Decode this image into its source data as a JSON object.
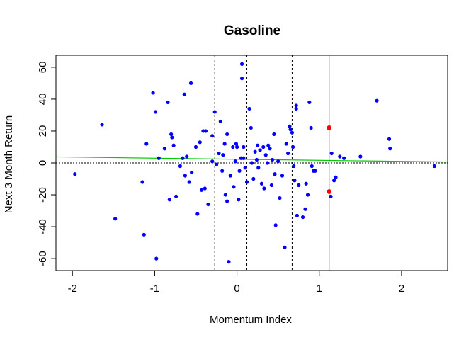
{
  "chart_data": {
    "type": "scatter",
    "title": "Gasoline",
    "xlabel": "Momentum Index",
    "ylabel": "Next 3 Month Return",
    "xlim": [
      -2.2,
      2.56
    ],
    "ylim": [
      -67.5,
      67.5
    ],
    "xticks": [
      -2,
      -1,
      0,
      1,
      2
    ],
    "yticks": [
      -60,
      -40,
      -20,
      0,
      20,
      40,
      60
    ],
    "grid": false,
    "colors": {
      "points": "#0000ff",
      "highlight": "#ff0000",
      "fit_line": "#00cc00",
      "vline_current": "#ff0000",
      "reference_lines": "#000000"
    },
    "reference_lines": {
      "horizontal_dotted_y": 0,
      "vertical_dashed_x": [
        -0.27,
        0.12,
        0.67
      ],
      "vertical_solid_red_x": 1.12
    },
    "fit_line": {
      "x": [
        -2.2,
        2.56
      ],
      "y": [
        3.8,
        0.6
      ]
    },
    "highlight_points": [
      {
        "x": 1.12,
        "y": 22
      },
      {
        "x": 1.12,
        "y": -18
      }
    ],
    "points": [
      {
        "x": -1.97,
        "y": -7
      },
      {
        "x": -1.64,
        "y": 24
      },
      {
        "x": -1.48,
        "y": -35
      },
      {
        "x": -1.15,
        "y": -12
      },
      {
        "x": -1.13,
        "y": -45
      },
      {
        "x": -1.1,
        "y": 12
      },
      {
        "x": -1.02,
        "y": 44
      },
      {
        "x": -0.99,
        "y": 32
      },
      {
        "x": -0.98,
        "y": -60
      },
      {
        "x": -0.95,
        "y": 3
      },
      {
        "x": -0.88,
        "y": 9
      },
      {
        "x": -0.84,
        "y": 38
      },
      {
        "x": -0.82,
        "y": -23
      },
      {
        "x": -0.8,
        "y": 18
      },
      {
        "x": -0.79,
        "y": 16
      },
      {
        "x": -0.77,
        "y": 11
      },
      {
        "x": -0.74,
        "y": -21
      },
      {
        "x": -0.69,
        "y": -2
      },
      {
        "x": -0.66,
        "y": 3
      },
      {
        "x": -0.64,
        "y": 43
      },
      {
        "x": -0.63,
        "y": -8
      },
      {
        "x": -0.61,
        "y": 4
      },
      {
        "x": -0.58,
        "y": -12
      },
      {
        "x": -0.56,
        "y": 50
      },
      {
        "x": -0.55,
        "y": -6
      },
      {
        "x": -0.5,
        "y": 10
      },
      {
        "x": -0.48,
        "y": -32
      },
      {
        "x": -0.45,
        "y": 13
      },
      {
        "x": -0.43,
        "y": -17
      },
      {
        "x": -0.41,
        "y": 20
      },
      {
        "x": -0.38,
        "y": 20
      },
      {
        "x": -0.39,
        "y": -16
      },
      {
        "x": -0.35,
        "y": -26
      },
      {
        "x": -0.3,
        "y": 17
      },
      {
        "x": -0.3,
        "y": 1
      },
      {
        "x": -0.27,
        "y": 32
      },
      {
        "x": -0.25,
        "y": -1
      },
      {
        "x": -0.22,
        "y": 6
      },
      {
        "x": -0.2,
        "y": 26
      },
      {
        "x": -0.18,
        "y": -5
      },
      {
        "x": -0.17,
        "y": 5
      },
      {
        "x": -0.15,
        "y": 12
      },
      {
        "x": -0.14,
        "y": -20
      },
      {
        "x": -0.12,
        "y": 18
      },
      {
        "x": -0.12,
        "y": -24
      },
      {
        "x": -0.1,
        "y": -62
      },
      {
        "x": -0.08,
        "y": -8
      },
      {
        "x": -0.05,
        "y": 10
      },
      {
        "x": -0.04,
        "y": -15
      },
      {
        "x": -0.02,
        "y": 1
      },
      {
        "x": -0.01,
        "y": 12
      },
      {
        "x": 0.0,
        "y": 10
      },
      {
        "x": 0.02,
        "y": -23
      },
      {
        "x": 0.03,
        "y": -5
      },
      {
        "x": 0.05,
        "y": 3
      },
      {
        "x": 0.06,
        "y": 62
      },
      {
        "x": 0.06,
        "y": 53
      },
      {
        "x": 0.08,
        "y": 10
      },
      {
        "x": 0.08,
        "y": 3
      },
      {
        "x": 0.1,
        "y": -3
      },
      {
        "x": 0.12,
        "y": -12
      },
      {
        "x": 0.15,
        "y": 34
      },
      {
        "x": 0.17,
        "y": 22
      },
      {
        "x": 0.18,
        "y": 0
      },
      {
        "x": 0.2,
        "y": -10
      },
      {
        "x": 0.22,
        "y": 7
      },
      {
        "x": 0.24,
        "y": 2
      },
      {
        "x": 0.25,
        "y": 11
      },
      {
        "x": 0.26,
        "y": -3
      },
      {
        "x": 0.28,
        "y": 8
      },
      {
        "x": 0.3,
        "y": -13
      },
      {
        "x": 0.32,
        "y": 10
      },
      {
        "x": 0.33,
        "y": -16
      },
      {
        "x": 0.35,
        "y": 5
      },
      {
        "x": 0.37,
        "y": 0
      },
      {
        "x": 0.38,
        "y": 11
      },
      {
        "x": 0.4,
        "y": 9
      },
      {
        "x": 0.42,
        "y": -14
      },
      {
        "x": 0.43,
        "y": 2
      },
      {
        "x": 0.45,
        "y": 18
      },
      {
        "x": 0.46,
        "y": -7
      },
      {
        "x": 0.47,
        "y": -39
      },
      {
        "x": 0.5,
        "y": 1
      },
      {
        "x": 0.52,
        "y": -22
      },
      {
        "x": 0.55,
        "y": -8
      },
      {
        "x": 0.58,
        "y": -53
      },
      {
        "x": 0.6,
        "y": 12
      },
      {
        "x": 0.62,
        "y": 6
      },
      {
        "x": 0.64,
        "y": 23
      },
      {
        "x": 0.65,
        "y": 21
      },
      {
        "x": 0.67,
        "y": 19
      },
      {
        "x": 0.68,
        "y": 10
      },
      {
        "x": 0.69,
        "y": -2
      },
      {
        "x": 0.7,
        "y": -11
      },
      {
        "x": 0.72,
        "y": 36
      },
      {
        "x": 0.72,
        "y": 34
      },
      {
        "x": 0.73,
        "y": -33
      },
      {
        "x": 0.75,
        "y": -14
      },
      {
        "x": 0.8,
        "y": -34
      },
      {
        "x": 0.83,
        "y": -29
      },
      {
        "x": 0.84,
        "y": -13
      },
      {
        "x": 0.86,
        "y": -20
      },
      {
        "x": 0.88,
        "y": 38
      },
      {
        "x": 0.9,
        "y": 22
      },
      {
        "x": 0.91,
        "y": -2
      },
      {
        "x": 0.93,
        "y": -5
      },
      {
        "x": 0.95,
        "y": -5
      },
      {
        "x": 1.14,
        "y": -21
      },
      {
        "x": 1.15,
        "y": 6
      },
      {
        "x": 1.18,
        "y": -11
      },
      {
        "x": 1.2,
        "y": -9
      },
      {
        "x": 1.25,
        "y": 4
      },
      {
        "x": 1.3,
        "y": 3
      },
      {
        "x": 1.5,
        "y": 4
      },
      {
        "x": 1.7,
        "y": 39
      },
      {
        "x": 1.85,
        "y": 15
      },
      {
        "x": 1.86,
        "y": 9
      },
      {
        "x": 2.4,
        "y": -2
      }
    ]
  }
}
